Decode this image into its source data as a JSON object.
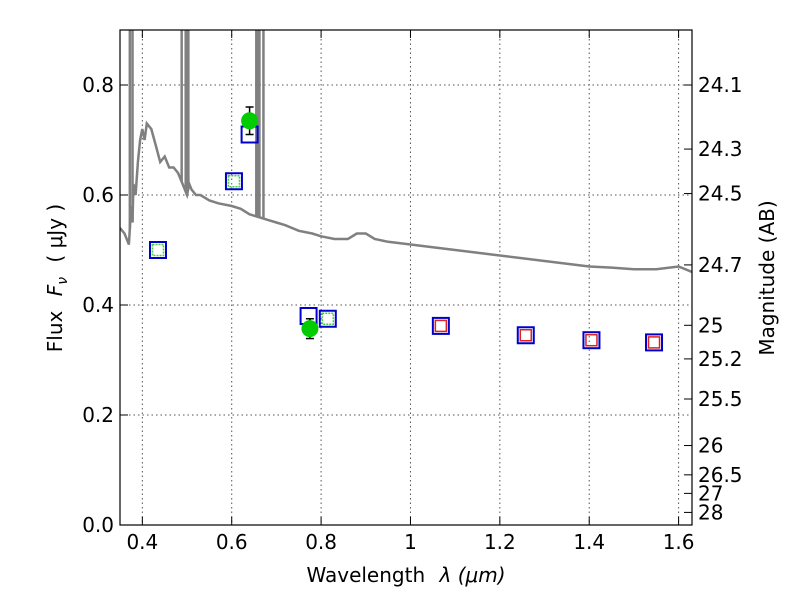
{
  "chart_data": {
    "type": "scatter",
    "xlabel_text": "Wavelength",
    "xlabel_math": "λ (μm)",
    "ylabel_text": "Flux",
    "ylabel_math": "F",
    "ylabel_sub": "ν",
    "ylabel_unit": "( μJy )",
    "y2label": "Magnitude (AB)",
    "xlim": [
      0.35,
      1.63
    ],
    "ylim": [
      0.0,
      0.9
    ],
    "x_ticks": [
      0.4,
      0.6,
      0.8,
      1.0,
      1.2,
      1.4,
      1.6
    ],
    "x_tick_labels": [
      "0.4",
      "0.6",
      "0.8",
      "1",
      "1.2",
      "1.4",
      "1.6"
    ],
    "y_ticks": [
      0.0,
      0.2,
      0.4,
      0.6,
      0.8
    ],
    "y_tick_labels": [
      "0.0",
      "0.2",
      "0.4",
      "0.6",
      "0.8"
    ],
    "mag_ticks": [
      {
        "label": "24.1",
        "flux": 0.8
      },
      {
        "label": "24.3",
        "flux": 0.6835
      },
      {
        "label": "24.5",
        "flux": 0.6026
      },
      {
        "label": "24.7",
        "flux": 0.4729
      },
      {
        "label": "25",
        "flux": 0.3631
      },
      {
        "label": "25.2",
        "flux": 0.302
      },
      {
        "label": "25.5",
        "flux": 0.2291
      },
      {
        "label": "26",
        "flux": 0.1445
      },
      {
        "label": "26.5",
        "flux": 0.0912
      },
      {
        "label": "27",
        "flux": 0.0575
      },
      {
        "label": "28",
        "flux": 0.0229
      }
    ],
    "grid": true,
    "colors": {
      "model_sed": "#808080",
      "observed": "#00cc00",
      "model_square": "#0000cc",
      "phot_green": "#44cc44",
      "phot_red": "#dd2222"
    },
    "model_sed": {
      "name": "",
      "x": [
        0.35,
        0.36,
        0.37,
        0.375,
        0.378,
        0.38,
        0.385,
        0.39,
        0.395,
        0.4,
        0.405,
        0.41,
        0.42,
        0.43,
        0.44,
        0.45,
        0.46,
        0.47,
        0.48,
        0.49,
        0.5,
        0.505,
        0.51,
        0.52,
        0.53,
        0.55,
        0.57,
        0.6,
        0.62,
        0.64,
        0.66,
        0.68,
        0.7,
        0.72,
        0.75,
        0.78,
        0.8,
        0.83,
        0.86,
        0.88,
        0.9,
        0.92,
        0.95,
        1.0,
        1.05,
        1.1,
        1.15,
        1.2,
        1.25,
        1.3,
        1.35,
        1.4,
        1.45,
        1.5,
        1.55,
        1.6,
        1.63
      ],
      "y": [
        0.54,
        0.53,
        0.51,
        0.58,
        0.55,
        0.62,
        0.6,
        0.66,
        0.7,
        0.72,
        0.7,
        0.73,
        0.72,
        0.69,
        0.66,
        0.67,
        0.65,
        0.65,
        0.64,
        0.62,
        0.6,
        0.62,
        0.61,
        0.6,
        0.6,
        0.59,
        0.585,
        0.58,
        0.575,
        0.565,
        0.56,
        0.555,
        0.55,
        0.545,
        0.535,
        0.53,
        0.525,
        0.52,
        0.52,
        0.53,
        0.53,
        0.52,
        0.515,
        0.51,
        0.505,
        0.5,
        0.495,
        0.49,
        0.485,
        0.48,
        0.475,
        0.47,
        0.468,
        0.465,
        0.465,
        0.47,
        0.46
      ]
    },
    "emission_lines": [
      0.372,
      0.378,
      0.488,
      0.497,
      0.5,
      0.503,
      0.655,
      0.658,
      0.662,
      0.671
    ],
    "observed_points": [
      {
        "x": 0.64,
        "y": 0.735,
        "yerr": 0.025
      },
      {
        "x": 0.775,
        "y": 0.357,
        "yerr": 0.018
      }
    ],
    "model_photometry_blue": [
      {
        "x": 0.435,
        "y": 0.5
      },
      {
        "x": 0.605,
        "y": 0.625
      },
      {
        "x": 0.64,
        "y": 0.71
      },
      {
        "x": 0.772,
        "y": 0.38
      },
      {
        "x": 0.815,
        "y": 0.375
      },
      {
        "x": 1.068,
        "y": 0.362
      },
      {
        "x": 1.258,
        "y": 0.345
      },
      {
        "x": 1.405,
        "y": 0.336
      },
      {
        "x": 1.545,
        "y": 0.332
      }
    ],
    "observed_photometry_green": [
      {
        "x": 0.435,
        "y": 0.5
      },
      {
        "x": 0.605,
        "y": 0.625
      },
      {
        "x": 0.815,
        "y": 0.375
      }
    ],
    "observed_photometry_red": [
      {
        "x": 1.068,
        "y": 0.362
      },
      {
        "x": 1.258,
        "y": 0.345
      },
      {
        "x": 1.405,
        "y": 0.336
      },
      {
        "x": 1.545,
        "y": 0.332
      }
    ]
  }
}
